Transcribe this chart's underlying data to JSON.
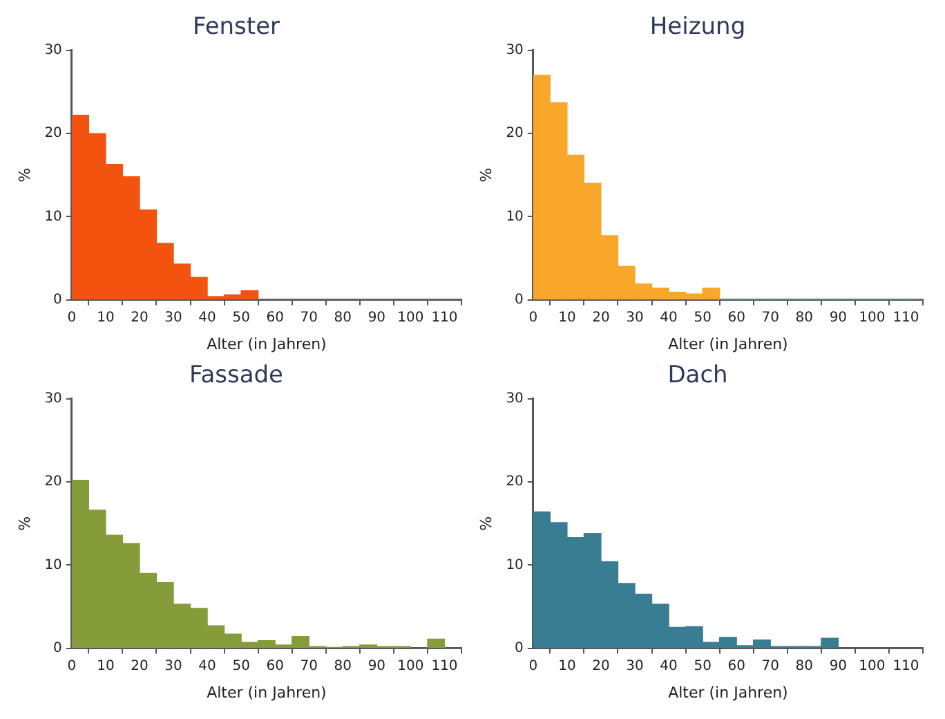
{
  "chart_data": [
    {
      "type": "histogram",
      "title": "Fenster",
      "xlabel": "Alter (in Jahren)",
      "ylabel": "%",
      "bins": [
        0,
        5,
        10,
        15,
        20,
        25,
        30,
        35,
        40,
        45,
        50,
        55,
        60,
        65,
        70,
        75,
        80,
        85,
        90,
        95,
        100,
        105,
        110,
        115
      ],
      "values": [
        22.2,
        20,
        16.3,
        14.8,
        10.8,
        6.8,
        4.3,
        2.7,
        0.4,
        0.6,
        1.1,
        0,
        0,
        0,
        0,
        0,
        0,
        0,
        0,
        0,
        0,
        0,
        0
      ],
      "color": "#f4520f",
      "xlim": [
        0,
        115
      ],
      "xticks": [
        0,
        10,
        20,
        30,
        40,
        50,
        60,
        70,
        80,
        90,
        100,
        110
      ],
      "ylim": [
        0,
        30
      ],
      "yticks": [
        0,
        10,
        20,
        30
      ],
      "grid": false,
      "legend": false
    },
    {
      "type": "histogram",
      "title": "Heizung",
      "xlabel": "Alter (in Jahren)",
      "ylabel": "%",
      "bins": [
        0,
        5,
        10,
        15,
        20,
        25,
        30,
        35,
        40,
        45,
        50,
        55,
        60,
        65,
        70,
        75,
        80,
        85,
        90,
        95,
        100,
        105,
        110,
        115
      ],
      "values": [
        27,
        23.7,
        17.4,
        14,
        7.7,
        4,
        1.9,
        1.4,
        0.9,
        0.7,
        1.4,
        0,
        0,
        0,
        0,
        0,
        0,
        0,
        0,
        0,
        0,
        0,
        0
      ],
      "color": "#f9a72b",
      "xlim": [
        0,
        115
      ],
      "xticks": [
        0,
        10,
        20,
        30,
        40,
        50,
        60,
        70,
        80,
        90,
        100,
        110
      ],
      "ylim": [
        0,
        30
      ],
      "yticks": [
        0,
        10,
        20,
        30
      ],
      "grid": false,
      "legend": false
    },
    {
      "type": "histogram",
      "title": "Fassade",
      "xlabel": "Alter (in Jahren)",
      "ylabel": "%",
      "bins": [
        0,
        5,
        10,
        15,
        20,
        25,
        30,
        35,
        40,
        45,
        50,
        55,
        60,
        65,
        70,
        75,
        80,
        85,
        90,
        95,
        100,
        105,
        110,
        115
      ],
      "values": [
        20.2,
        16.6,
        13.6,
        12.6,
        9,
        7.9,
        5.3,
        4.8,
        2.7,
        1.7,
        0.7,
        0.9,
        0.4,
        1.4,
        0.2,
        0.1,
        0.2,
        0.4,
        0.2,
        0.2,
        0,
        1.1,
        0
      ],
      "color": "#869c3b",
      "xlim": [
        0,
        115
      ],
      "xticks": [
        0,
        10,
        20,
        30,
        40,
        50,
        60,
        70,
        80,
        90,
        100,
        110
      ],
      "ylim": [
        0,
        30
      ],
      "yticks": [
        0,
        10,
        20,
        30
      ],
      "grid": false,
      "legend": false
    },
    {
      "type": "histogram",
      "title": "Dach",
      "xlabel": "Alter (in Jahren)",
      "ylabel": "%",
      "bins": [
        0,
        5,
        10,
        15,
        20,
        25,
        30,
        35,
        40,
        45,
        50,
        55,
        60,
        65,
        70,
        75,
        80,
        85,
        90,
        95,
        100,
        105,
        110,
        115
      ],
      "values": [
        16.4,
        15.1,
        13.3,
        13.8,
        10.4,
        7.8,
        6.5,
        5.3,
        2.5,
        2.6,
        0.7,
        1.3,
        0.3,
        1,
        0.2,
        0.2,
        0.2,
        1.2,
        0,
        0,
        0,
        0,
        0
      ],
      "color": "#387d92",
      "xlim": [
        0,
        115
      ],
      "xticks": [
        0,
        10,
        20,
        30,
        40,
        50,
        60,
        70,
        80,
        90,
        100,
        110
      ],
      "ylim": [
        0,
        30
      ],
      "yticks": [
        0,
        10,
        20,
        30
      ],
      "grid": false,
      "legend": false
    }
  ]
}
